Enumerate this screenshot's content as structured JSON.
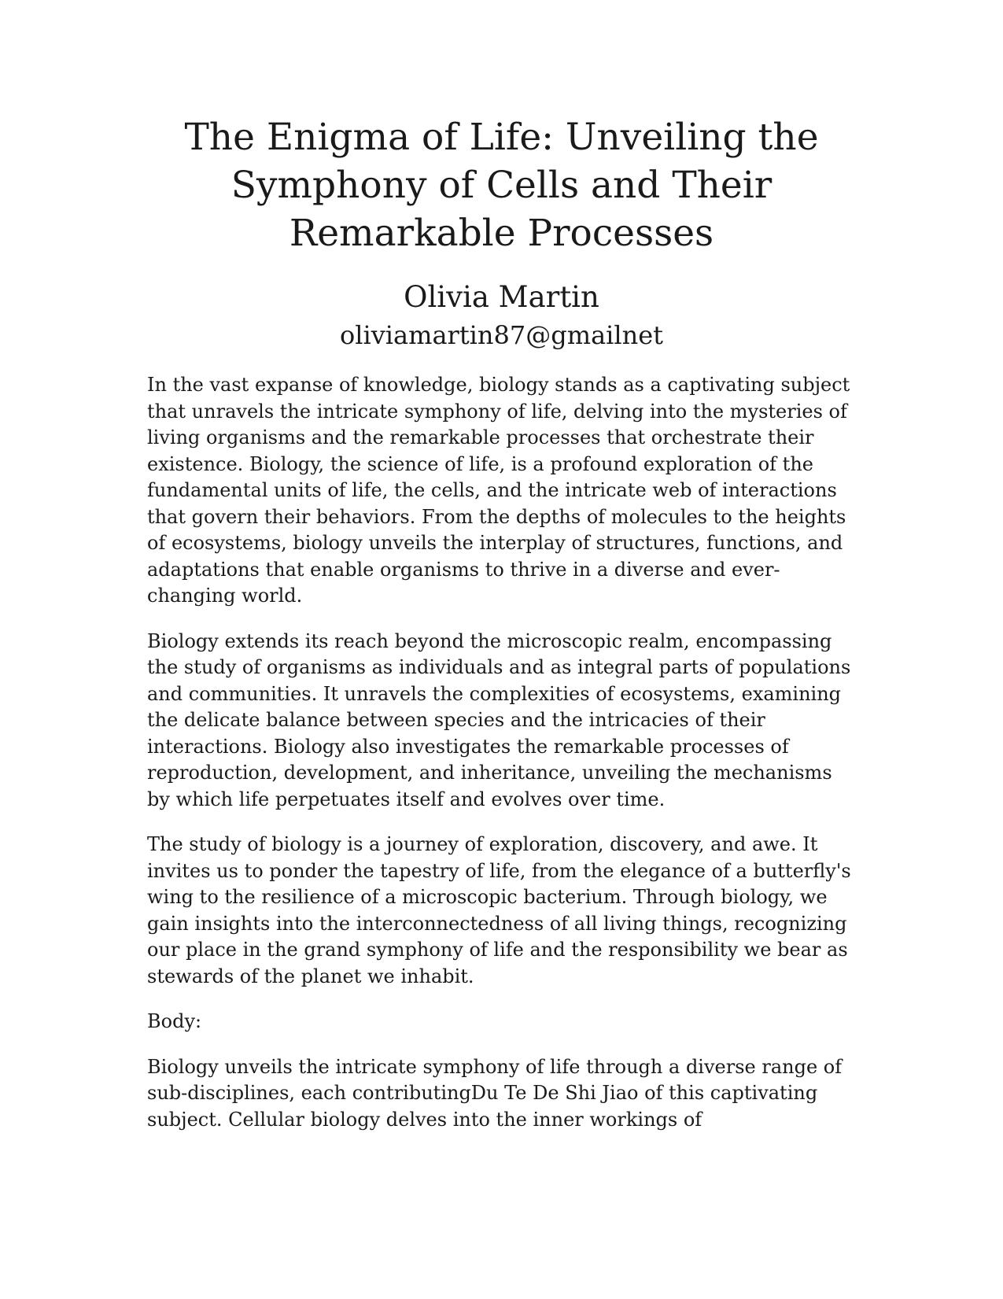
{
  "document": {
    "title": "The Enigma of Life: Unveiling the Symphony of Cells and Their Remarkable Processes",
    "author": "Olivia Martin",
    "email": "oliviamartin87@gmailnet",
    "paragraphs": [
      "In the vast expanse of knowledge, biology stands as a captivating subject that unravels the intricate symphony of life, delving into the mysteries of living organisms and the remarkable processes that orchestrate their existence. Biology, the science of life, is a profound exploration of the fundamental units of life, the cells, and the intricate web of interactions that govern their behaviors. From the depths of molecules to the heights of ecosystems, biology unveils the interplay of structures, functions, and adaptations that enable organisms to thrive in a diverse and ever-changing world.",
      "Biology extends its reach beyond the microscopic realm, encompassing the study of organisms as individuals and as integral parts of populations and communities. It unravels the complexities of ecosystems, examining the delicate balance between species and the intricacies of their interactions. Biology also investigates the remarkable processes of reproduction, development, and inheritance, unveiling the mechanisms by which life perpetuates itself and evolves over time.",
      "The study of biology is a journey of exploration, discovery, and awe. It invites us to ponder the tapestry of life, from the elegance of a butterfly's wing to the resilience of a microscopic bacterium. Through biology, we gain insights into the interconnectedness of all living things, recognizing our place in the grand symphony of life and the responsibility we bear as stewards of the planet we inhabit.",
      "Body:",
      "Biology unveils the intricate symphony of life through a diverse range of sub-disciplines, each contributingDu Te De Shi Jiao of this captivating subject. Cellular biology delves into the inner workings of"
    ]
  }
}
